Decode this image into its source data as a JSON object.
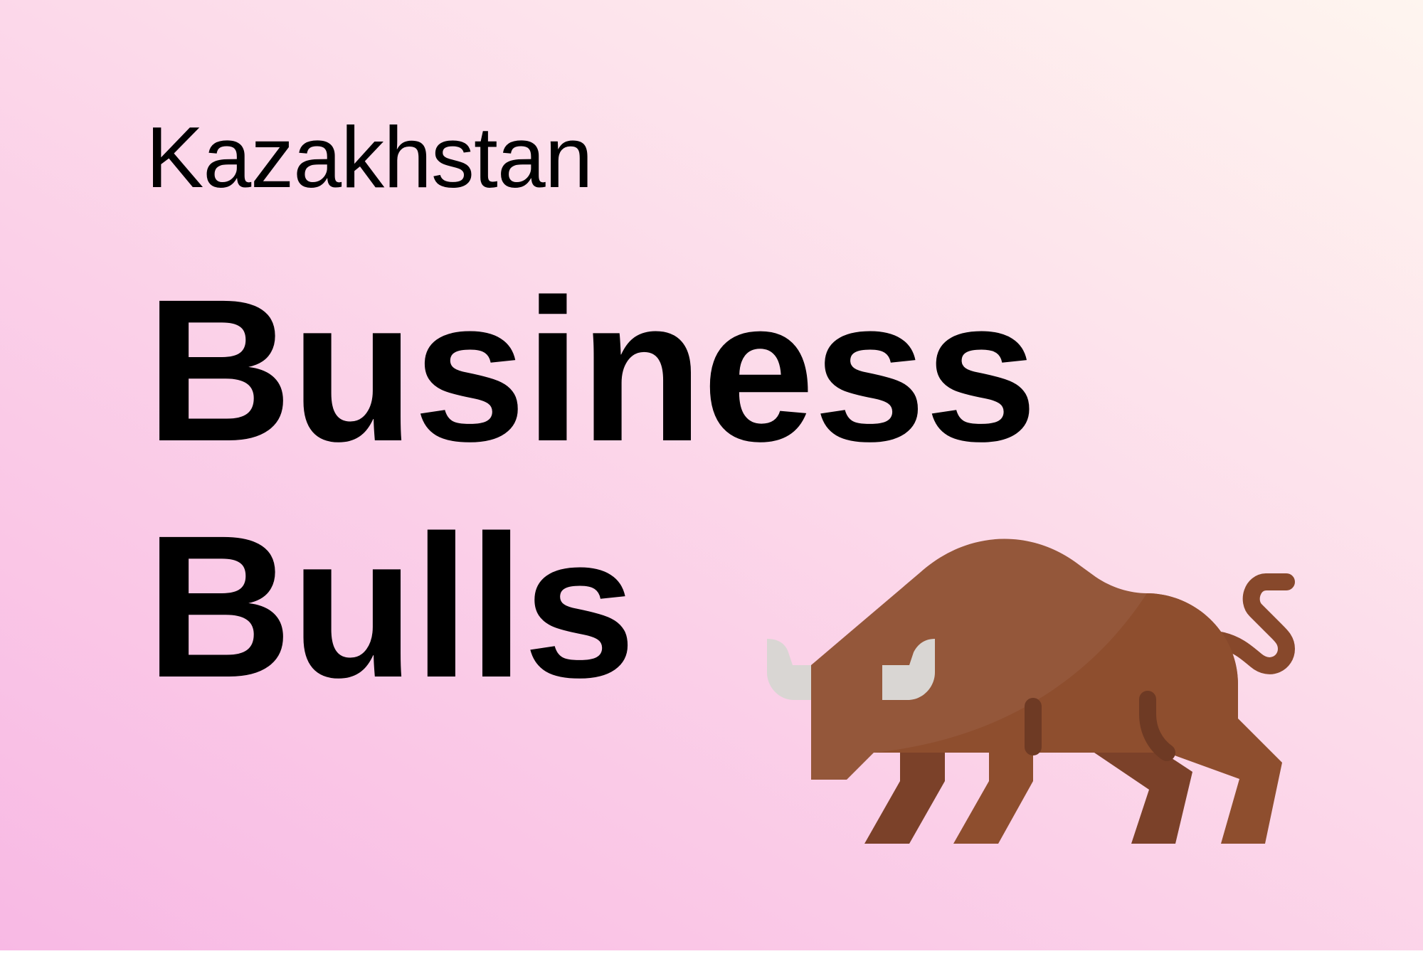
{
  "hero": {
    "subtitle": "Kazakhstan",
    "title_line1": "Business",
    "title_line2": "Bulls"
  },
  "illustration": {
    "icon": "bull-icon",
    "colors": {
      "body": "#94573a",
      "body_shadow": "#8e4e2e",
      "legs": "#7b4129",
      "horn": "#d9d6d3",
      "detail": "#6e3a24"
    }
  },
  "colors": {
    "background_gradient": [
      "#f8b9e4",
      "#fbd0e8",
      "#fde4ec",
      "#fef5ef"
    ],
    "text": "#000000"
  }
}
